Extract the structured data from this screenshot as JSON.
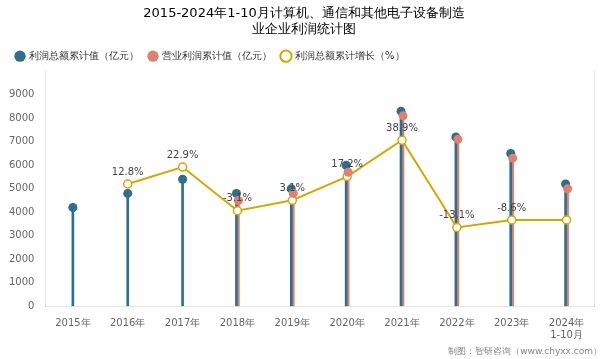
{
  "chart_data": {
    "type": "lollipop",
    "title": "2015-2024年1-10月计算机、通信和其他电子设备制造\n业企业利润统计图",
    "footer": "制图：智研咨询（www.chyxx.com）",
    "categories": [
      "2015年",
      "2016年",
      "2017年",
      "2018年",
      "2019年",
      "2020年",
      "2021年",
      "2022年",
      "2023年",
      "2024年\n1-10月"
    ],
    "series": [
      {
        "name": "利润总额累计值（亿元）",
        "color": "#2e6e8e",
        "values": [
          4200,
          4800,
          5400,
          4800,
          5000,
          6000,
          8300,
          7200,
          6500,
          5200
        ]
      },
      {
        "name": "营业利润累计值（亿元）",
        "color": "#e08070",
        "values": [
          null,
          null,
          null,
          4500,
          4800,
          5700,
          8100,
          7100,
          6300,
          5000
        ]
      },
      {
        "name": "利润总额累计增长（%）",
        "color": "#d4a800",
        "type": "line",
        "axis": "y2",
        "values": [
          null,
          12.8,
          22.9,
          -3.1,
          3.1,
          17.2,
          38.9,
          -13.1,
          -8.6,
          -8.6
        ],
        "data_labels": true,
        "value_labels": [
          null,
          "12.8%",
          "22.9%",
          "-3.1%",
          "3.1%",
          "17.2%",
          "38.9%",
          "-13.1%",
          "-8.6%",
          null
        ]
      }
    ],
    "ylim": [
      0,
      10000
    ],
    "yticks": [
      0,
      1000,
      2000,
      3000,
      4000,
      5000,
      6000,
      7000,
      8000,
      9000
    ],
    "y2lim": [
      -60,
      80
    ],
    "y2ticks": [],
    "grid": false,
    "legend": "upper left"
  }
}
